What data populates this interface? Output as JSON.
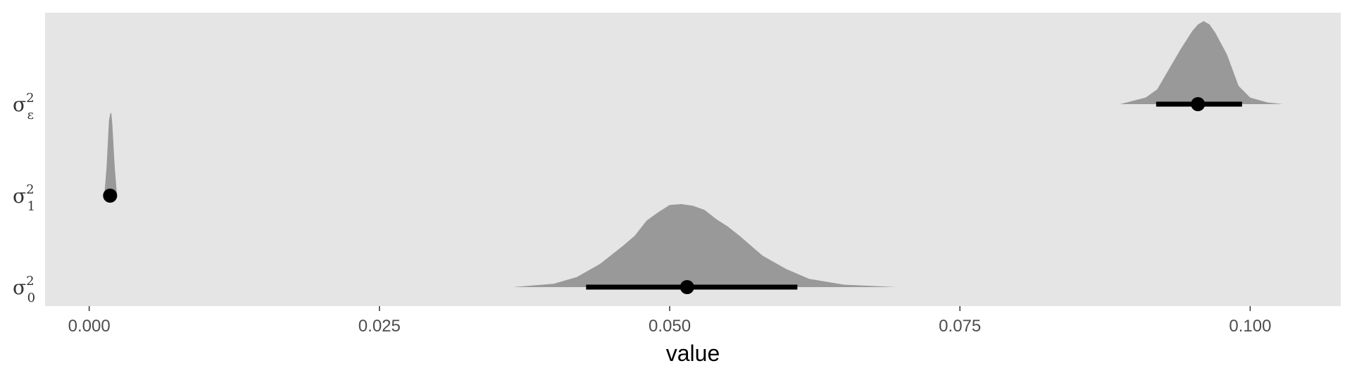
{
  "chart_data": {
    "type": "halfeye",
    "title": "",
    "xlabel": "value",
    "ylabel": "",
    "xlim": [
      -0.0038,
      0.1078
    ],
    "x_ticks": [
      0.0,
      0.025,
      0.05,
      0.075,
      0.1
    ],
    "x_tick_labels": [
      "0.000",
      "0.025",
      "0.050",
      "0.075",
      "0.100"
    ],
    "grid": false,
    "legend": "none",
    "colors": {
      "panel": "#e5e5e5",
      "density": "#999999",
      "interval": "#000000",
      "point": "#000000",
      "text": "#4d4d4d"
    },
    "categories": [
      {
        "label": "σ",
        "sup": "2",
        "sub": "0",
        "point": 0.0515,
        "interval": [
          0.0428,
          0.061
        ],
        "density": {
          "x": [
            0.0365,
            0.04,
            0.042,
            0.044,
            0.046,
            0.047,
            0.048,
            0.049,
            0.05,
            0.051,
            0.052,
            0.053,
            0.054,
            0.055,
            0.056,
            0.057,
            0.058,
            0.06,
            0.062,
            0.065,
            0.0695
          ],
          "y": [
            0.0,
            0.04,
            0.12,
            0.28,
            0.5,
            0.62,
            0.8,
            0.9,
            0.99,
            1.0,
            0.98,
            0.93,
            0.82,
            0.73,
            0.62,
            0.5,
            0.38,
            0.22,
            0.1,
            0.03,
            0.0
          ]
        }
      },
      {
        "label": "σ",
        "sup": "2",
        "sub": "1",
        "point": 0.0018,
        "interval": [
          0.0016,
          0.002
        ],
        "density": {
          "x": [
            0.0013,
            0.0015,
            0.0017,
            0.0018,
            0.0019,
            0.002,
            0.0022,
            0.0024
          ],
          "y": [
            0.0,
            0.35,
            0.9,
            0.98,
            1.0,
            0.85,
            0.35,
            0.0
          ]
        }
      },
      {
        "label": "σ",
        "sup": "2",
        "sub": "ε",
        "point": 0.0955,
        "interval": [
          0.0919,
          0.0993
        ],
        "density": {
          "x": [
            0.0888,
            0.091,
            0.092,
            0.093,
            0.094,
            0.095,
            0.0955,
            0.096,
            0.0965,
            0.097,
            0.098,
            0.099,
            0.1,
            0.1015,
            0.1028
          ],
          "y": [
            0.0,
            0.08,
            0.18,
            0.42,
            0.66,
            0.88,
            0.96,
            1.0,
            0.96,
            0.86,
            0.6,
            0.22,
            0.08,
            0.02,
            0.0
          ]
        }
      }
    ]
  }
}
